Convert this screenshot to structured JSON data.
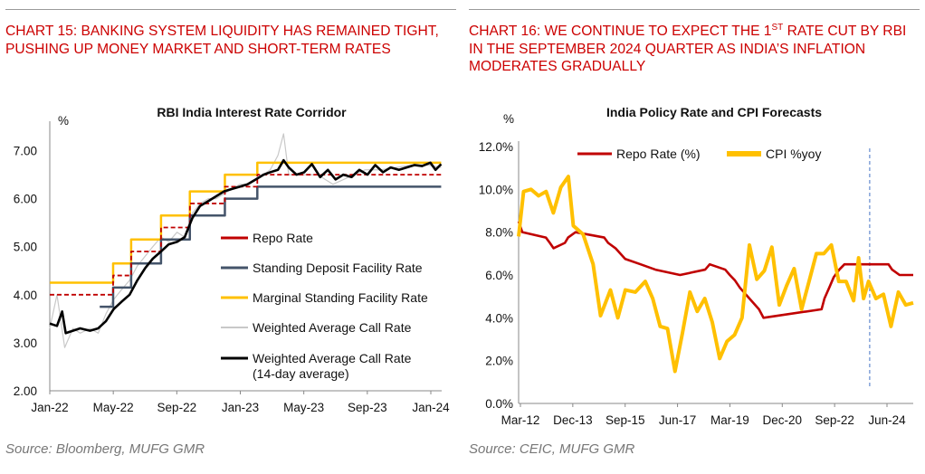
{
  "header": {
    "left_title": "CHART 15: BANKING SYSTEM LIQUIDITY HAS REMAINED TIGHT, PUSHING UP MONEY MARKET AND SHORT-TERM RATES",
    "right_title_pre": "CHART 16: WE CONTINUE TO EXPECT THE 1",
    "right_title_sup": "ST",
    "right_title_post": " RATE CUT BY RBI IN THE SEPTEMBER 2024 QUARTER AS INDIA’S INFLATION MODERATES GRADUALLY"
  },
  "footer": {
    "left_source": "Source: Bloomberg, MUFG GMR",
    "right_source": "Source: CEIC, MUFG GMR"
  },
  "colors": {
    "heading": "#cc0000",
    "repo": "#c00000",
    "sdf": "#44546a",
    "msf": "#ffc000",
    "call": "#c8c8c8",
    "call14": "#000000",
    "cpi": "#ffc000",
    "vline": "#4472c4"
  },
  "chart_data": [
    {
      "type": "line",
      "title": "RBI India Interest Rate Corridor",
      "ylabel": "%",
      "ylim": [
        2.0,
        7.5
      ],
      "yticks": [
        "2.00",
        "3.00",
        "4.00",
        "5.00",
        "6.00",
        "7.00"
      ],
      "xticks": [
        "Jan-22",
        "May-22",
        "Sep-22",
        "Jan-23",
        "May-23",
        "Sep-23",
        "Jan-24"
      ],
      "xlim": [
        "2022-01-01",
        "2024-02-01"
      ],
      "series": [
        {
          "name": "Repo Rate",
          "style": "dashed-step",
          "color": "#c00000",
          "points": [
            [
              "2022-01-01",
              4.0
            ],
            [
              "2022-05-04",
              4.4
            ],
            [
              "2022-06-08",
              4.9
            ],
            [
              "2022-08-05",
              5.4
            ],
            [
              "2022-09-30",
              5.9
            ],
            [
              "2022-12-07",
              6.25
            ],
            [
              "2023-02-08",
              6.5
            ],
            [
              "2024-01-31",
              6.5
            ]
          ]
        },
        {
          "name": "Standing Deposit Facility Rate",
          "style": "step",
          "color": "#44546a",
          "points": [
            [
              "2022-04-08",
              3.75
            ],
            [
              "2022-05-04",
              4.15
            ],
            [
              "2022-06-08",
              4.65
            ],
            [
              "2022-08-05",
              5.15
            ],
            [
              "2022-09-30",
              5.65
            ],
            [
              "2022-12-07",
              6.0
            ],
            [
              "2023-02-08",
              6.25
            ],
            [
              "2024-01-31",
              6.25
            ]
          ]
        },
        {
          "name": "Marginal Standing Facility Rate",
          "style": "step",
          "color": "#ffc000",
          "points": [
            [
              "2022-01-01",
              4.25
            ],
            [
              "2022-05-04",
              4.65
            ],
            [
              "2022-06-08",
              5.15
            ],
            [
              "2022-08-05",
              5.65
            ],
            [
              "2022-09-30",
              6.15
            ],
            [
              "2022-12-07",
              6.5
            ],
            [
              "2023-02-08",
              6.75
            ],
            [
              "2024-01-31",
              6.75
            ]
          ]
        },
        {
          "name": "Weighted Average Call Rate",
          "style": "noisy",
          "color": "#c8c8c8",
          "points": [
            [
              "2022-01-01",
              3.3
            ],
            [
              "2022-01-15",
              4.0
            ],
            [
              "2022-01-30",
              2.9
            ],
            [
              "2022-02-15",
              3.3
            ],
            [
              "2022-03-01",
              3.2
            ],
            [
              "2022-03-20",
              3.3
            ],
            [
              "2022-04-05",
              3.2
            ],
            [
              "2022-04-20",
              3.6
            ],
            [
              "2022-05-05",
              3.9
            ],
            [
              "2022-05-20",
              4.1
            ],
            [
              "2022-06-05",
              4.3
            ],
            [
              "2022-06-20",
              4.6
            ],
            [
              "2022-07-05",
              4.8
            ],
            [
              "2022-07-20",
              5.0
            ],
            [
              "2022-08-05",
              5.2
            ],
            [
              "2022-08-20",
              5.1
            ],
            [
              "2022-09-05",
              5.3
            ],
            [
              "2022-09-20",
              5.2
            ],
            [
              "2022-10-05",
              5.7
            ],
            [
              "2022-10-20",
              5.9
            ],
            [
              "2022-11-05",
              6.0
            ],
            [
              "2022-11-20",
              6.0
            ],
            [
              "2022-12-05",
              6.1
            ],
            [
              "2022-12-20",
              6.2
            ],
            [
              "2023-01-05",
              6.3
            ],
            [
              "2023-01-20",
              6.3
            ],
            [
              "2023-02-05",
              6.4
            ],
            [
              "2023-02-20",
              6.5
            ],
            [
              "2023-03-05",
              6.6
            ],
            [
              "2023-03-20",
              6.9
            ],
            [
              "2023-03-31",
              7.35
            ],
            [
              "2023-04-10",
              6.5
            ],
            [
              "2023-05-05",
              6.5
            ],
            [
              "2023-06-05",
              6.5
            ],
            [
              "2023-07-05",
              6.3
            ],
            [
              "2023-08-05",
              6.45
            ],
            [
              "2023-09-05",
              6.6
            ],
            [
              "2023-10-05",
              6.6
            ],
            [
              "2023-11-05",
              6.65
            ],
            [
              "2023-12-05",
              6.7
            ],
            [
              "2024-01-05",
              6.7
            ],
            [
              "2024-01-31",
              6.65
            ]
          ]
        },
        {
          "name": "Weighted Average Call Rate (14-day average)",
          "style": "bold",
          "color": "#000000",
          "points": [
            [
              "2022-01-01",
              3.4
            ],
            [
              "2022-01-15",
              3.35
            ],
            [
              "2022-01-25",
              3.65
            ],
            [
              "2022-02-01",
              3.2
            ],
            [
              "2022-02-15",
              3.25
            ],
            [
              "2022-03-01",
              3.3
            ],
            [
              "2022-03-20",
              3.25
            ],
            [
              "2022-04-05",
              3.3
            ],
            [
              "2022-04-20",
              3.45
            ],
            [
              "2022-05-05",
              3.7
            ],
            [
              "2022-05-20",
              3.85
            ],
            [
              "2022-06-05",
              4.0
            ],
            [
              "2022-06-20",
              4.3
            ],
            [
              "2022-07-05",
              4.55
            ],
            [
              "2022-07-20",
              4.75
            ],
            [
              "2022-08-05",
              4.9
            ],
            [
              "2022-08-20",
              5.05
            ],
            [
              "2022-09-05",
              5.1
            ],
            [
              "2022-09-20",
              5.2
            ],
            [
              "2022-10-05",
              5.6
            ],
            [
              "2022-10-20",
              5.85
            ],
            [
              "2022-11-05",
              5.95
            ],
            [
              "2022-11-20",
              6.05
            ],
            [
              "2022-12-05",
              6.15
            ],
            [
              "2022-12-20",
              6.2
            ],
            [
              "2023-01-05",
              6.25
            ],
            [
              "2023-01-20",
              6.3
            ],
            [
              "2023-02-05",
              6.4
            ],
            [
              "2023-02-20",
              6.5
            ],
            [
              "2023-03-05",
              6.55
            ],
            [
              "2023-03-20",
              6.6
            ],
            [
              "2023-03-31",
              6.8
            ],
            [
              "2023-04-10",
              6.65
            ],
            [
              "2023-04-25",
              6.5
            ],
            [
              "2023-05-10",
              6.55
            ],
            [
              "2023-05-25",
              6.72
            ],
            [
              "2023-06-10",
              6.45
            ],
            [
              "2023-06-25",
              6.6
            ],
            [
              "2023-07-10",
              6.4
            ],
            [
              "2023-07-25",
              6.5
            ],
            [
              "2023-08-10",
              6.45
            ],
            [
              "2023-08-25",
              6.6
            ],
            [
              "2023-09-10",
              6.5
            ],
            [
              "2023-09-25",
              6.7
            ],
            [
              "2023-10-10",
              6.55
            ],
            [
              "2023-10-25",
              6.65
            ],
            [
              "2023-11-10",
              6.6
            ],
            [
              "2023-11-25",
              6.65
            ],
            [
              "2023-12-10",
              6.7
            ],
            [
              "2023-12-25",
              6.68
            ],
            [
              "2024-01-10",
              6.75
            ],
            [
              "2024-01-20",
              6.6
            ],
            [
              "2024-01-31",
              6.72
            ]
          ]
        }
      ]
    },
    {
      "type": "line",
      "title": "India Policy Rate and CPI Forecasts",
      "ylabel": "%",
      "ylim": [
        0,
        12
      ],
      "yticks": [
        "0.0%",
        "2.0%",
        "4.0%",
        "6.0%",
        "8.0%",
        "10.0%",
        "12.0%"
      ],
      "xticks": [
        "Mar-12",
        "Dec-13",
        "Sep-15",
        "Jun-17",
        "Mar-19",
        "Dec-20",
        "Sep-22",
        "Jun-24"
      ],
      "xlim": [
        "2012-03-01",
        "2025-06-01"
      ],
      "forecast_marker": "2023-12-15",
      "series": [
        {
          "name": "Repo Rate (%)",
          "color": "#c00000",
          "points": [
            [
              "2012-03-01",
              8.5
            ],
            [
              "2012-04-15",
              8.0
            ],
            [
              "2013-01-29",
              7.75
            ],
            [
              "2013-03-19",
              7.5
            ],
            [
              "2013-05-03",
              7.25
            ],
            [
              "2013-09-20",
              7.5
            ],
            [
              "2013-10-29",
              7.75
            ],
            [
              "2014-01-28",
              8.0
            ],
            [
              "2015-01-15",
              7.75
            ],
            [
              "2015-03-04",
              7.5
            ],
            [
              "2015-06-02",
              7.25
            ],
            [
              "2015-09-29",
              6.75
            ],
            [
              "2016-04-05",
              6.5
            ],
            [
              "2016-10-04",
              6.25
            ],
            [
              "2017-08-02",
              6.0
            ],
            [
              "2018-06-06",
              6.25
            ],
            [
              "2018-08-01",
              6.5
            ],
            [
              "2019-02-07",
              6.25
            ],
            [
              "2019-04-04",
              6.0
            ],
            [
              "2019-06-06",
              5.75
            ],
            [
              "2019-08-07",
              5.4
            ],
            [
              "2019-10-04",
              5.15
            ],
            [
              "2020-03-27",
              4.4
            ],
            [
              "2020-05-22",
              4.0
            ],
            [
              "2022-05-04",
              4.4
            ],
            [
              "2022-06-08",
              4.9
            ],
            [
              "2022-08-05",
              5.4
            ],
            [
              "2022-09-30",
              5.9
            ],
            [
              "2022-12-07",
              6.25
            ],
            [
              "2023-02-08",
              6.5
            ],
            [
              "2024-08-01",
              6.5
            ],
            [
              "2024-09-15",
              6.25
            ],
            [
              "2024-12-15",
              6.0
            ],
            [
              "2025-06-01",
              6.0
            ]
          ]
        },
        {
          "name": "CPI %yoy",
          "color": "#ffc000",
          "points": [
            [
              "2012-03-01",
              7.8
            ],
            [
              "2012-05-01",
              9.9
            ],
            [
              "2012-08-01",
              10.0
            ],
            [
              "2012-11-01",
              9.7
            ],
            [
              "2013-02-01",
              9.9
            ],
            [
              "2013-05-01",
              8.9
            ],
            [
              "2013-08-01",
              10.1
            ],
            [
              "2013-11-01",
              10.6
            ],
            [
              "2014-01-01",
              8.3
            ],
            [
              "2014-05-01",
              7.9
            ],
            [
              "2014-09-01",
              6.5
            ],
            [
              "2014-12-01",
              4.1
            ],
            [
              "2015-04-01",
              5.3
            ],
            [
              "2015-07-01",
              4.0
            ],
            [
              "2015-10-01",
              5.3
            ],
            [
              "2016-02-01",
              5.2
            ],
            [
              "2016-06-01",
              5.7
            ],
            [
              "2016-09-01",
              4.9
            ],
            [
              "2016-12-01",
              3.6
            ],
            [
              "2017-03-01",
              3.5
            ],
            [
              "2017-06-01",
              1.5
            ],
            [
              "2017-09-01",
              3.3
            ],
            [
              "2017-12-01",
              5.2
            ],
            [
              "2018-03-01",
              4.3
            ],
            [
              "2018-06-01",
              4.9
            ],
            [
              "2018-09-01",
              3.8
            ],
            [
              "2018-12-01",
              2.1
            ],
            [
              "2019-03-01",
              2.9
            ],
            [
              "2019-06-01",
              3.2
            ],
            [
              "2019-09-01",
              4.0
            ],
            [
              "2019-12-01",
              7.4
            ],
            [
              "2020-03-01",
              5.8
            ],
            [
              "2020-06-01",
              6.2
            ],
            [
              "2020-09-01",
              7.3
            ],
            [
              "2020-12-01",
              4.6
            ],
            [
              "2021-03-01",
              5.5
            ],
            [
              "2021-06-01",
              6.3
            ],
            [
              "2021-09-01",
              4.4
            ],
            [
              "2021-12-01",
              5.7
            ],
            [
              "2022-03-01",
              7.0
            ],
            [
              "2022-06-01",
              7.0
            ],
            [
              "2022-09-01",
              7.4
            ],
            [
              "2022-12-01",
              5.7
            ],
            [
              "2023-03-01",
              5.7
            ],
            [
              "2023-06-01",
              4.8
            ],
            [
              "2023-08-01",
              6.8
            ],
            [
              "2023-10-01",
              4.9
            ],
            [
              "2023-12-01",
              5.7
            ],
            [
              "2024-03-01",
              4.9
            ],
            [
              "2024-06-01",
              5.1
            ],
            [
              "2024-09-01",
              3.6
            ],
            [
              "2024-12-01",
              5.2
            ],
            [
              "2025-03-01",
              4.6
            ],
            [
              "2025-06-01",
              4.7
            ]
          ]
        }
      ]
    }
  ]
}
